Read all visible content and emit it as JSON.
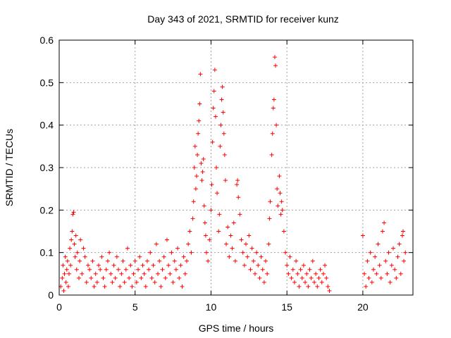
{
  "chart_data": {
    "type": "scatter",
    "title": "Day 343 of 2021, SRMTID for receiver kunz",
    "xlabel": "GPS time / hours",
    "ylabel": "SRMTID / TECUs",
    "xlim": [
      0,
      23.3
    ],
    "ylim": [
      0,
      0.6
    ],
    "xticks": [
      0,
      5,
      10,
      15,
      20
    ],
    "yticks": [
      0,
      0.1,
      0.2,
      0.3,
      0.4,
      0.5,
      0.6
    ],
    "xtick_labels": [
      "0",
      "5",
      "10",
      "15",
      "20"
    ],
    "ytick_labels": [
      "0",
      "0.1",
      "0.2",
      "0.3",
      "0.4",
      "0.5",
      "0.6"
    ],
    "grid": true,
    "marker": "+",
    "color": "#ff0000",
    "series": [
      {
        "name": "SRMTID",
        "points": [
          [
            0.1,
            0.02
          ],
          [
            0.2,
            0.04
          ],
          [
            0.25,
            0.07
          ],
          [
            0.3,
            0.01
          ],
          [
            0.35,
            0.05
          ],
          [
            0.4,
            0.09
          ],
          [
            0.45,
            0.03
          ],
          [
            0.5,
            0.06
          ],
          [
            0.55,
            0.08
          ],
          [
            0.6,
            0.02
          ],
          [
            0.65,
            0.05
          ],
          [
            0.7,
            0.11
          ],
          [
            0.75,
            0.07
          ],
          [
            0.8,
            0.13
          ],
          [
            0.85,
            0.15
          ],
          [
            0.9,
            0.19
          ],
          [
            0.95,
            0.195
          ],
          [
            1.0,
            0.12
          ],
          [
            1.05,
            0.09
          ],
          [
            1.1,
            0.14
          ],
          [
            1.15,
            0.06
          ],
          [
            1.2,
            0.1
          ],
          [
            1.3,
            0.04
          ],
          [
            1.35,
            0.08
          ],
          [
            1.4,
            0.13
          ],
          [
            1.5,
            0.05
          ],
          [
            1.6,
            0.11
          ],
          [
            1.7,
            0.09
          ],
          [
            1.8,
            0.03
          ],
          [
            1.9,
            0.07
          ],
          [
            2.0,
            0.06
          ],
          [
            2.1,
            0.04
          ],
          [
            2.2,
            0.08
          ],
          [
            2.3,
            0.02
          ],
          [
            2.4,
            0.05
          ],
          [
            2.5,
            0.03
          ],
          [
            2.6,
            0.07
          ],
          [
            2.7,
            0.06
          ],
          [
            2.8,
            0.09
          ],
          [
            2.9,
            0.04
          ],
          [
            3.0,
            0.02
          ],
          [
            3.1,
            0.06
          ],
          [
            3.2,
            0.08
          ],
          [
            3.3,
            0.1
          ],
          [
            3.4,
            0.05
          ],
          [
            3.5,
            0.03
          ],
          [
            3.6,
            0.07
          ],
          [
            3.7,
            0.04
          ],
          [
            3.8,
            0.09
          ],
          [
            3.9,
            0.06
          ],
          [
            4.0,
            0.02
          ],
          [
            4.1,
            0.05
          ],
          [
            4.2,
            0.08
          ],
          [
            4.3,
            0.03
          ],
          [
            4.4,
            0.06
          ],
          [
            4.5,
            0.11
          ],
          [
            4.6,
            0.04
          ],
          [
            4.7,
            0.07
          ],
          [
            4.8,
            0.02
          ],
          [
            4.9,
            0.05
          ],
          [
            5.0,
            0.08
          ],
          [
            5.1,
            0.03
          ],
          [
            5.2,
            0.06
          ],
          [
            5.3,
            0.09
          ],
          [
            5.4,
            0.04
          ],
          [
            5.5,
            0.07
          ],
          [
            5.6,
            0.05
          ],
          [
            5.7,
            0.02
          ],
          [
            5.8,
            0.08
          ],
          [
            5.9,
            0.06
          ],
          [
            6.0,
            0.1
          ],
          [
            6.1,
            0.04
          ],
          [
            6.2,
            0.07
          ],
          [
            6.3,
            0.03
          ],
          [
            6.4,
            0.12
          ],
          [
            6.5,
            0.05
          ],
          [
            6.6,
            0.08
          ],
          [
            6.7,
            0.02
          ],
          [
            6.8,
            0.06
          ],
          [
            6.9,
            0.09
          ],
          [
            7.0,
            0.04
          ],
          [
            7.1,
            0.13
          ],
          [
            7.2,
            0.07
          ],
          [
            7.3,
            0.05
          ],
          [
            7.4,
            0.1
          ],
          [
            7.5,
            0.03
          ],
          [
            7.6,
            0.08
          ],
          [
            7.7,
            0.06
          ],
          [
            7.8,
            0.11
          ],
          [
            7.9,
            0.04
          ],
          [
            8.0,
            0.07
          ],
          [
            8.1,
            0.02
          ],
          [
            8.2,
            0.09
          ],
          [
            8.3,
            0.05
          ],
          [
            8.4,
            0.08
          ],
          [
            8.5,
            0.12
          ],
          [
            8.6,
            0.15
          ],
          [
            8.7,
            0.1
          ],
          [
            8.8,
            0.18
          ],
          [
            8.85,
            0.22
          ],
          [
            8.9,
            0.3
          ],
          [
            8.95,
            0.35
          ],
          [
            9.0,
            0.25
          ],
          [
            9.05,
            0.28
          ],
          [
            9.1,
            0.33
          ],
          [
            9.15,
            0.38
          ],
          [
            9.2,
            0.41
          ],
          [
            9.25,
            0.45
          ],
          [
            9.3,
            0.52
          ],
          [
            9.35,
            0.31
          ],
          [
            9.4,
            0.27
          ],
          [
            9.45,
            0.29
          ],
          [
            9.5,
            0.32
          ],
          [
            9.55,
            0.21
          ],
          [
            9.6,
            0.17
          ],
          [
            9.65,
            0.14
          ],
          [
            9.7,
            0.1
          ],
          [
            9.8,
            0.08
          ],
          [
            9.9,
            0.13
          ],
          [
            10.0,
            0.2
          ],
          [
            10.05,
            0.26
          ],
          [
            10.1,
            0.36
          ],
          [
            10.15,
            0.44
          ],
          [
            10.2,
            0.48
          ],
          [
            10.25,
            0.53
          ],
          [
            10.3,
            0.42
          ],
          [
            10.35,
            0.3
          ],
          [
            10.4,
            0.24
          ],
          [
            10.5,
            0.15
          ],
          [
            10.55,
            0.19
          ],
          [
            10.6,
            0.35
          ],
          [
            10.65,
            0.4
          ],
          [
            10.7,
            0.46
          ],
          [
            10.75,
            0.49
          ],
          [
            10.8,
            0.43
          ],
          [
            10.85,
            0.38
          ],
          [
            10.9,
            0.33
          ],
          [
            10.95,
            0.27
          ],
          [
            11.0,
            0.12
          ],
          [
            11.1,
            0.16
          ],
          [
            11.2,
            0.09
          ],
          [
            11.3,
            0.14
          ],
          [
            11.4,
            0.11
          ],
          [
            11.5,
            0.17
          ],
          [
            11.6,
            0.08
          ],
          [
            11.7,
            0.26
          ],
          [
            11.75,
            0.27
          ],
          [
            11.8,
            0.23
          ],
          [
            11.9,
            0.19
          ],
          [
            12.0,
            0.13
          ],
          [
            12.1,
            0.1
          ],
          [
            12.2,
            0.07
          ],
          [
            12.3,
            0.12
          ],
          [
            12.4,
            0.09
          ],
          [
            12.5,
            0.14
          ],
          [
            12.6,
            0.06
          ],
          [
            12.7,
            0.11
          ],
          [
            12.8,
            0.08
          ],
          [
            12.9,
            0.05
          ],
          [
            13.0,
            0.1
          ],
          [
            13.1,
            0.07
          ],
          [
            13.2,
            0.04
          ],
          [
            13.3,
            0.09
          ],
          [
            13.4,
            0.06
          ],
          [
            13.5,
            0.03
          ],
          [
            13.6,
            0.08
          ],
          [
            13.7,
            0.05
          ],
          [
            13.8,
            0.12
          ],
          [
            13.85,
            0.18
          ],
          [
            13.9,
            0.22
          ],
          [
            14.0,
            0.33
          ],
          [
            14.05,
            0.38
          ],
          [
            14.1,
            0.44
          ],
          [
            14.15,
            0.46
          ],
          [
            14.2,
            0.56
          ],
          [
            14.25,
            0.54
          ],
          [
            14.3,
            0.4
          ],
          [
            14.35,
            0.25
          ],
          [
            14.4,
            0.21
          ],
          [
            14.5,
            0.28
          ],
          [
            14.55,
            0.24
          ],
          [
            14.6,
            0.19
          ],
          [
            14.65,
            0.22
          ],
          [
            14.7,
            0.2
          ],
          [
            14.8,
            0.15
          ],
          [
            14.9,
            0.1
          ],
          [
            15.0,
            0.07
          ],
          [
            15.1,
            0.05
          ],
          [
            15.2,
            0.09
          ],
          [
            15.3,
            0.04
          ],
          [
            15.4,
            0.06
          ],
          [
            15.5,
            0.03
          ],
          [
            15.6,
            0.08
          ],
          [
            15.7,
            0.05
          ],
          [
            15.8,
            0.02
          ],
          [
            15.9,
            0.06
          ],
          [
            16.0,
            0.04
          ],
          [
            16.1,
            0.07
          ],
          [
            16.2,
            0.03
          ],
          [
            16.3,
            0.05
          ],
          [
            16.4,
            0.02
          ],
          [
            16.5,
            0.06
          ],
          [
            16.6,
            0.04
          ],
          [
            16.7,
            0.08
          ],
          [
            16.8,
            0.03
          ],
          [
            16.9,
            0.05
          ],
          [
            17.0,
            0.02
          ],
          [
            17.1,
            0.04
          ],
          [
            17.2,
            0.06
          ],
          [
            17.3,
            0.03
          ],
          [
            17.4,
            0.05
          ],
          [
            17.5,
            0.07
          ],
          [
            17.6,
            0.04
          ],
          [
            17.7,
            0.02
          ],
          [
            17.8,
            0.01
          ],
          [
            20.0,
            0.14
          ],
          [
            20.1,
            0.05
          ],
          [
            20.2,
            0.02
          ],
          [
            20.3,
            0.08
          ],
          [
            20.4,
            0.04
          ],
          [
            20.5,
            0.1
          ],
          [
            20.6,
            0.03
          ],
          [
            20.7,
            0.06
          ],
          [
            20.8,
            0.09
          ],
          [
            20.9,
            0.05
          ],
          [
            21.0,
            0.12
          ],
          [
            21.1,
            0.07
          ],
          [
            21.2,
            0.04
          ],
          [
            21.3,
            0.15
          ],
          [
            21.4,
            0.17
          ],
          [
            21.5,
            0.08
          ],
          [
            21.6,
            0.05
          ],
          [
            21.7,
            0.1
          ],
          [
            21.8,
            0.03
          ],
          [
            21.9,
            0.07
          ],
          [
            22.0,
            0.11
          ],
          [
            22.1,
            0.06
          ],
          [
            22.2,
            0.04
          ],
          [
            22.3,
            0.09
          ],
          [
            22.4,
            0.12
          ],
          [
            22.5,
            0.05
          ],
          [
            22.6,
            0.14
          ],
          [
            22.65,
            0.15
          ],
          [
            22.7,
            0.08
          ],
          [
            22.8,
            0.1
          ]
        ]
      }
    ]
  }
}
